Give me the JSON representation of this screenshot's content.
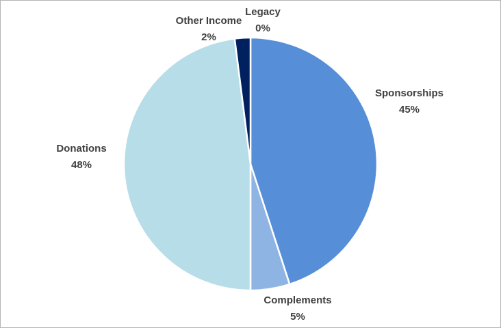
{
  "chart_data": {
    "type": "pie",
    "categories": [
      "Sponsorships",
      "Complements",
      "Donations",
      "Other Income",
      "Legacy"
    ],
    "values": [
      45,
      5,
      48,
      2,
      0
    ],
    "value_labels": [
      "45%",
      "5%",
      "48%",
      "2%",
      "0%"
    ],
    "colors": [
      "#568FD8",
      "#8EB4E3",
      "#B7DDE8",
      "#002060",
      "#4A7EBB"
    ],
    "legend": "none"
  }
}
